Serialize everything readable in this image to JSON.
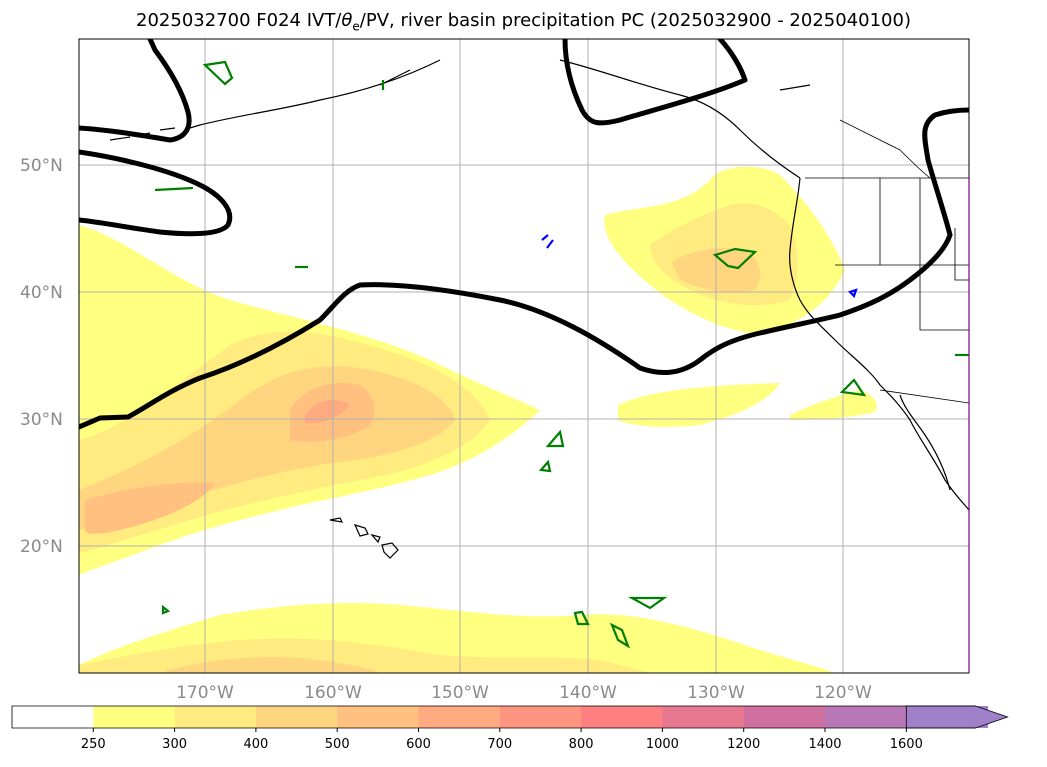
{
  "title": {
    "prefix": "2025032700 F024 IVT/",
    "theta": "θ",
    "theta_sub": "e",
    "suffix": "/PV, river basin precipitation PC (2025032900 - 2025040100)"
  },
  "map": {
    "lat_labels": [
      "50°N",
      "40°N",
      "30°N",
      "20°N"
    ],
    "lon_labels": [
      "170°W",
      "160°W",
      "150°W",
      "140°W",
      "130°W",
      "120°W"
    ],
    "colors": {
      "coast": "#000000",
      "pv_contour": "#000000",
      "theta_e_contour_green": "#008000",
      "theta_e_contour_blue": "#0000ff",
      "grid": "#b0b0b0"
    }
  },
  "colorbar": {
    "levels": [
      "250",
      "300",
      "400",
      "500",
      "600",
      "700",
      "800",
      "1000",
      "1200",
      "1400",
      "1600"
    ],
    "colors": [
      "#ffffff",
      "#ffff80",
      "#ffeb80",
      "#ffd580",
      "#ffc080",
      "#ffaa80",
      "#ff9580",
      "#ff8080",
      "#e87890",
      "#d070a0",
      "#b878b8",
      "#a080c8"
    ]
  }
}
